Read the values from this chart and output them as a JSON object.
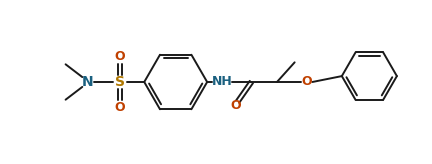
{
  "bg_color": "#ffffff",
  "line_color": "#1a1a1a",
  "atom_colors": {
    "N": "#1a6080",
    "O": "#c04000",
    "S": "#b07800",
    "C": "#1a1a1a"
  },
  "figsize": [
    4.32,
    1.64
  ],
  "dpi": 100
}
